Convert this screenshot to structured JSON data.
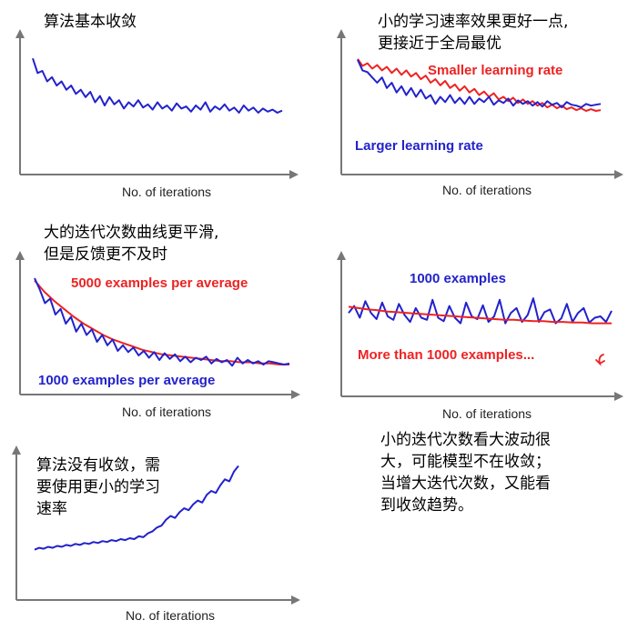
{
  "colors": {
    "blue": "#2222cc",
    "red": "#ee2222",
    "axis": "#777777"
  },
  "panels": [
    {
      "note": "算法基本收敛",
      "chart_data": {
        "type": "line",
        "xlabel": "No. of iterations",
        "series": [
          {
            "color": "blue",
            "values": [
              0.92,
              0.78,
              0.8,
              0.7,
              0.74,
              0.66,
              0.7,
              0.62,
              0.66,
              0.58,
              0.62,
              0.55,
              0.6,
              0.5,
              0.56,
              0.47,
              0.55,
              0.48,
              0.52,
              0.44,
              0.5,
              0.46,
              0.52,
              0.45,
              0.48,
              0.43,
              0.5,
              0.44,
              0.47,
              0.42,
              0.49,
              0.44,
              0.46,
              0.41,
              0.47,
              0.43,
              0.5,
              0.41,
              0.46,
              0.43,
              0.48,
              0.42,
              0.45,
              0.4,
              0.47,
              0.42,
              0.45,
              0.4,
              0.44,
              0.41,
              0.43,
              0.4,
              0.42
            ]
          }
        ]
      }
    },
    {
      "note": "小的学习速率效果更好一点,\n更接近于全局最优",
      "chart_data": {
        "type": "line",
        "xlabel": "No. of iterations",
        "series": [
          {
            "name": "Smaller learning rate",
            "color": "red",
            "values": [
              0.93,
              0.85,
              0.88,
              0.82,
              0.86,
              0.8,
              0.84,
              0.77,
              0.82,
              0.75,
              0.8,
              0.73,
              0.77,
              0.7,
              0.74,
              0.66,
              0.7,
              0.63,
              0.68,
              0.6,
              0.64,
              0.57,
              0.62,
              0.55,
              0.59,
              0.52,
              0.56,
              0.5,
              0.54,
              0.47,
              0.5,
              0.45,
              0.49,
              0.43,
              0.47,
              0.42,
              0.45,
              0.4,
              0.43,
              0.38,
              0.41,
              0.37,
              0.4,
              0.36,
              0.38,
              0.35,
              0.37,
              0.34,
              0.36,
              0.34,
              0.35
            ]
          },
          {
            "name": "Larger learning rate",
            "color": "blue",
            "values": [
              0.92,
              0.8,
              0.78,
              0.72,
              0.66,
              0.72,
              0.6,
              0.66,
              0.55,
              0.62,
              0.52,
              0.6,
              0.5,
              0.58,
              0.48,
              0.52,
              0.42,
              0.5,
              0.44,
              0.52,
              0.43,
              0.49,
              0.42,
              0.5,
              0.42,
              0.48,
              0.44,
              0.5,
              0.41,
              0.46,
              0.43,
              0.48,
              0.4,
              0.46,
              0.42,
              0.45,
              0.4,
              0.44,
              0.39,
              0.45,
              0.41,
              0.43,
              0.38,
              0.44,
              0.41,
              0.4,
              0.38,
              0.42,
              0.4,
              0.41,
              0.42
            ]
          }
        ]
      }
    },
    {
      "note": "大的迭代次数曲线更平滑,\n但是反馈更不及时",
      "chart_data": {
        "type": "line",
        "xlabel": "No. of iterations",
        "series": [
          {
            "name": "5000 examples per average",
            "color": "red",
            "values": [
              0.9,
              0.8,
              0.72,
              0.65,
              0.58,
              0.52,
              0.47,
              0.42,
              0.38,
              0.35,
              0.32,
              0.29,
              0.27,
              0.25,
              0.24,
              0.23,
              0.22,
              0.21,
              0.2,
              0.19,
              0.19,
              0.18,
              0.18,
              0.17,
              0.17,
              0.16,
              0.16
            ]
          },
          {
            "name": "1000 examples per average",
            "color": "blue",
            "values": [
              0.92,
              0.82,
              0.7,
              0.74,
              0.6,
              0.65,
              0.52,
              0.58,
              0.45,
              0.52,
              0.42,
              0.47,
              0.36,
              0.42,
              0.33,
              0.38,
              0.28,
              0.33,
              0.27,
              0.31,
              0.24,
              0.28,
              0.22,
              0.27,
              0.2,
              0.26,
              0.21,
              0.25,
              0.19,
              0.23,
              0.18,
              0.22,
              0.2,
              0.23,
              0.17,
              0.21,
              0.18,
              0.2,
              0.15,
              0.22,
              0.17,
              0.2,
              0.17,
              0.19,
              0.16,
              0.19,
              0.18,
              0.17,
              0.16,
              0.17
            ]
          }
        ]
      }
    },
    {
      "note": "",
      "chart_data": {
        "type": "line",
        "xlabel": "No. of iterations",
        "series": [
          {
            "name": "1000 examples",
            "color": "blue",
            "values": [
              0.55,
              0.65,
              0.48,
              0.72,
              0.55,
              0.46,
              0.7,
              0.5,
              0.45,
              0.68,
              0.52,
              0.42,
              0.62,
              0.48,
              0.45,
              0.74,
              0.48,
              0.43,
              0.65,
              0.48,
              0.4,
              0.7,
              0.5,
              0.46,
              0.66,
              0.42,
              0.5,
              0.74,
              0.4,
              0.55,
              0.62,
              0.42,
              0.52,
              0.76,
              0.42,
              0.56,
              0.6,
              0.4,
              0.47,
              0.68,
              0.42,
              0.55,
              0.62,
              0.41,
              0.48,
              0.5,
              0.42,
              0.58
            ]
          },
          {
            "name": "More than 1000 examples...",
            "color": "red",
            "values": [
              0.64,
              0.62,
              0.6,
              0.59,
              0.57,
              0.56,
              0.55,
              0.54,
              0.53,
              0.52,
              0.51,
              0.5,
              0.49,
              0.48,
              0.47,
              0.46,
              0.45,
              0.45,
              0.44,
              0.43,
              0.43,
              0.42,
              0.42,
              0.41,
              0.41,
              0.4,
              0.4,
              0.4
            ]
          }
        ]
      },
      "note_below": "小的迭代次数看大波动很\n大，可能模型不在收敛；\n当增大迭代次数，又能看\n到收敛趋势。"
    },
    {
      "note": "算法没有收敛，需\n要使用更小的学习\n速率",
      "chart_data": {
        "type": "line",
        "xlabel": "No. of iterations",
        "series": [
          {
            "color": "blue",
            "values": [
              0.05,
              0.07,
              0.06,
              0.08,
              0.07,
              0.09,
              0.08,
              0.1,
              0.09,
              0.11,
              0.1,
              0.12,
              0.11,
              0.13,
              0.12,
              0.14,
              0.13,
              0.15,
              0.14,
              0.16,
              0.15,
              0.17,
              0.16,
              0.19,
              0.18,
              0.22,
              0.24,
              0.28,
              0.3,
              0.36,
              0.4,
              0.38,
              0.44,
              0.48,
              0.46,
              0.52,
              0.56,
              0.54,
              0.62,
              0.66,
              0.64,
              0.72,
              0.78,
              0.76,
              0.86,
              0.92
            ]
          }
        ]
      }
    }
  ]
}
